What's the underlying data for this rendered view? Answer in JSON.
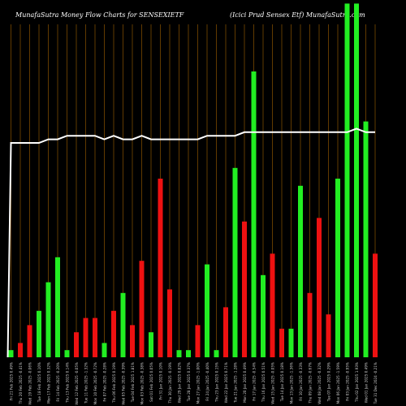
{
  "chart_data": {
    "type": "bar",
    "title_left": "MunafaSutra  Money Flow  Charts for SENSEXIETF",
    "title_right": "(Icici   Prud Sensex Etf) MunafaSutra.com",
    "categories": [
      "Fri 21 Feb 2025 0.49%",
      "Thu 20 Feb 2025 -0.41%",
      "Wed 19 Feb 2025 -0.06%",
      "Tue 18 Feb 2025 0.10%",
      "Mon 17 Feb 2025 0.32%",
      "Fri 14 Feb 2025 -0.20%",
      "Thu 13 Feb 2025 0.14%",
      "Wed 12 Feb 2025 -0.05%",
      "Tue 11 Feb 2025 -1.32%",
      "Mon 10 Feb 2025 -0.72%",
      "Fri 07 Feb 2025 -0.28%",
      "Thu 06 Feb 2025 0.19%",
      "Wed 05 Feb 2025 -0.39%",
      "Tue 04 Feb 2025 1.81%",
      "Mon 03 Feb 2025 -0.38%",
      "Sat 01 Feb 2025 0.05%",
      "Fri 31 Jan 2025 0.10%",
      "Thu 30 Jan 2025 -0.19%",
      "Wed 29 Jan 2025 0.82%",
      "Tue 28 Jan 2025 0.37%",
      "Mon 27 Jan 2025 -1.00%",
      "Fri 24 Jan 2025 -0.40%",
      "Thu 23 Jan 2025 0.15%",
      "Wed 22 Jan 2025 0.71%",
      "Tue 21 Jan 2025 -1.28%",
      "Mon 20 Jan 2025 0.49%",
      "Fri 17 Jan 2025 -0.54%",
      "Thu 16 Jan 2025 0.51%",
      "Wed 15 Jan 2025 -0.05%",
      "Tue 14 Jan 2025 0.18%",
      "Mon 13 Jan 2025 -1.36%",
      "Fri 10 Jan 2025 -0.33%",
      "Thu 09 Jan 2025 -0.67%",
      "Wed 08 Jan 2025 -0.32%",
      "Tue 07 Jan 2025 0.29%",
      "Mon 06 Jan 2025 -1.59%",
      "Fri 03 Jan 2025 -0.95%",
      "Thu 02 Jan 2025 1.93%",
      "Wed 01 Jan 2025 0.49%",
      "Tue 31 Dec 2024 -0.21%"
    ],
    "values": [
      2,
      4,
      9,
      13,
      21,
      28,
      2,
      7,
      11,
      11,
      4,
      13,
      18,
      9,
      27,
      7,
      50,
      19,
      2,
      2,
      9,
      26,
      2,
      14,
      53,
      38,
      80,
      23,
      29,
      8,
      8,
      48,
      18,
      39,
      12,
      50,
      99,
      99,
      66,
      29
    ],
    "up": [
      true,
      false,
      false,
      true,
      true,
      true,
      true,
      false,
      false,
      false,
      true,
      false,
      true,
      false,
      false,
      true,
      false,
      false,
      true,
      true,
      false,
      true,
      true,
      false,
      true,
      false,
      true,
      true,
      false,
      false,
      true,
      true,
      false,
      false,
      false,
      true,
      true,
      true,
      true,
      false
    ],
    "line_values": [
      60,
      60,
      60,
      60,
      61,
      61,
      62,
      62,
      62,
      62,
      61,
      62,
      61,
      61,
      62,
      61,
      61,
      61,
      61,
      61,
      61,
      62,
      62,
      62,
      62,
      63,
      63,
      63,
      63,
      63,
      63,
      63,
      63,
      63,
      63,
      63,
      63,
      64,
      63,
      63
    ],
    "ylim": [
      0,
      100
    ],
    "grid": "vertical",
    "colors": {
      "up": "#22ee22",
      "down": "#ee1111",
      "line": "#ffffff",
      "grid": "#7a4a00",
      "label": "#cccccc",
      "background": "#000000"
    }
  }
}
